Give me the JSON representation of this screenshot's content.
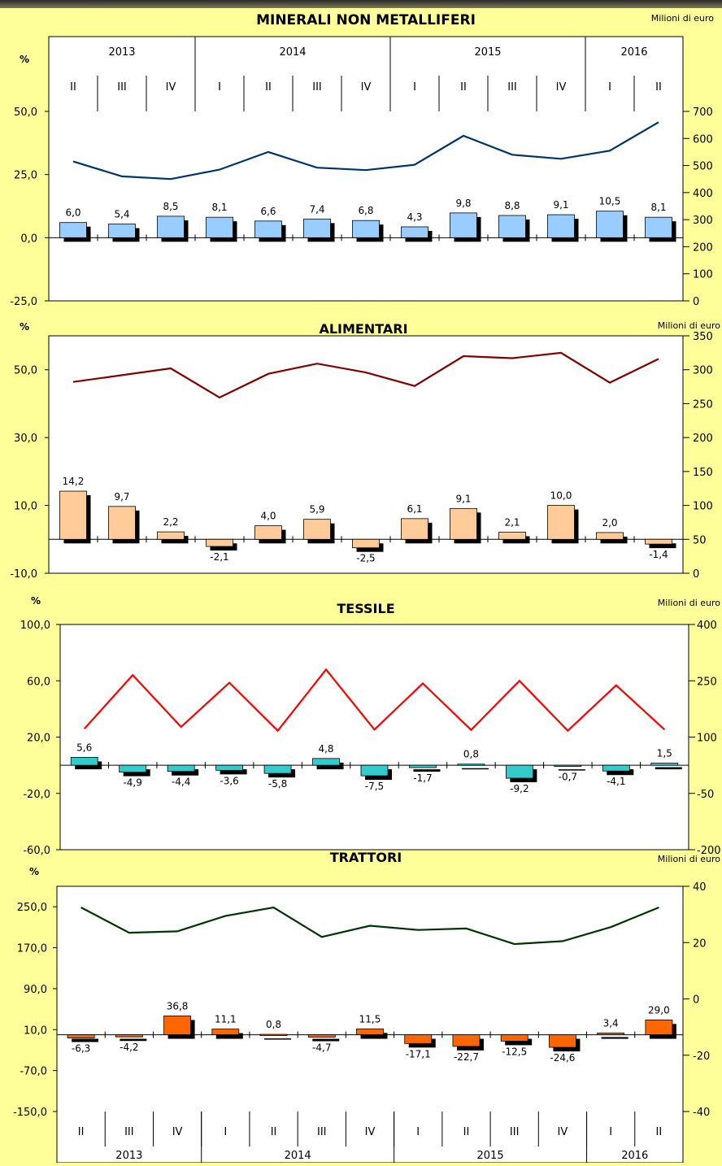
{
  "quarters": [
    "II",
    "III",
    "IV",
    "I",
    "II",
    "III",
    "IV",
    "I",
    "II",
    "III",
    "IV",
    "I",
    "II"
  ],
  "years": [
    {
      "label": "2013",
      "start": 0,
      "end": 3
    },
    {
      "label": "2014",
      "start": 3,
      "end": 7
    },
    {
      "label": "2015",
      "start": 7,
      "end": 11
    },
    {
      "label": "2016",
      "start": 11,
      "end": 13
    }
  ],
  "chart_data": [
    {
      "type": "bar+line",
      "title": "MINERALI NON METALLIFERI",
      "y_left_label": "%",
      "y_right_label": "Milioni di euro",
      "y_left_range": [
        -25,
        50
      ],
      "y_left_ticks": [
        "-25,0",
        "0,0",
        "25,0",
        "50,0"
      ],
      "y_right_range": [
        0,
        700
      ],
      "y_right_ticks": [
        "0",
        "100",
        "200",
        "300",
        "400",
        "500",
        "600",
        "700"
      ],
      "bars": {
        "values": [
          6.0,
          5.4,
          8.5,
          8.1,
          6.6,
          7.4,
          6.8,
          4.3,
          9.8,
          8.8,
          9.1,
          10.5,
          8.1
        ],
        "labels": [
          "6,0",
          "5,4",
          "8,5",
          "8,1",
          "6,6",
          "7,4",
          "6,8",
          "4,3",
          "9,8",
          "8,8",
          "9,1",
          "10,5",
          "8,1"
        ],
        "color": "#99ccff"
      },
      "line": {
        "values": [
          515,
          460,
          450,
          485,
          550,
          492,
          483,
          503,
          610,
          540,
          525,
          555,
          660
        ],
        "color": "#003366"
      }
    },
    {
      "type": "bar+line",
      "title": "ALIMENTARI",
      "y_left_label": "%",
      "y_right_label": "Milioni di euro",
      "y_left_range": [
        -10,
        60
      ],
      "y_left_ticks": [
        "-10,0",
        "10,0",
        "30,0",
        "50,0"
      ],
      "y_right_range": [
        0,
        350
      ],
      "y_right_ticks": [
        "0",
        "50",
        "100",
        "150",
        "200",
        "250",
        "300",
        "350"
      ],
      "bars": {
        "values": [
          14.2,
          9.7,
          2.2,
          -2.1,
          4.0,
          5.9,
          -2.5,
          6.1,
          9.1,
          2.1,
          10.0,
          2.0,
          -1.4
        ],
        "labels": [
          "14,2",
          "9,7",
          "2,2",
          "-2,1",
          "4,0",
          "5,9",
          "-2,5",
          "6,1",
          "9,1",
          "2,1",
          "10,0",
          "2,0",
          "-1,4"
        ],
        "color": "#ffcc99"
      },
      "line": {
        "values": [
          282,
          292,
          302,
          259,
          294,
          309,
          296,
          276,
          320,
          317,
          325,
          281,
          316
        ],
        "color": "#800000"
      }
    },
    {
      "type": "bar+line",
      "title": "TESSILE",
      "y_left_label": "%",
      "y_right_label": "Milioni di euro",
      "y_left_range": [
        -60,
        100
      ],
      "y_left_ticks": [
        "-60,0",
        "-20,0",
        "20,0",
        "60,0",
        "100,0"
      ],
      "y_right_range": [
        -200,
        400
      ],
      "y_right_ticks": [
        "-200",
        "-50",
        "100",
        "250",
        "400"
      ],
      "bars": {
        "values": [
          5.6,
          -4.9,
          -4.4,
          -3.6,
          -5.8,
          4.8,
          -7.5,
          -1.7,
          0.8,
          -9.2,
          -0.7,
          -4.1,
          1.5
        ],
        "labels": [
          "5,6",
          "-4,9",
          "-4,4",
          "-3,6",
          "-5,8",
          "4,8",
          "-7,5",
          "-1,7",
          "0,8",
          "-9,2",
          "-0,7",
          "-4,1",
          "1,5"
        ],
        "color": "#33cccc"
      },
      "line": {
        "values": [
          122,
          265,
          127,
          245,
          117,
          280,
          120,
          243,
          119,
          250,
          117,
          238,
          120
        ],
        "color": "#ff0000"
      }
    },
    {
      "type": "bar+line",
      "title": "TRATTORI",
      "y_left_label": "%",
      "y_right_label": "Milioni di euro",
      "y_left_range": [
        -150,
        290
      ],
      "y_left_ticks": [
        "-150,0",
        "-70,0",
        "10,0",
        "90,0",
        "170,0",
        "250,0"
      ],
      "y_right_range": [
        -40,
        40
      ],
      "y_right_ticks": [
        "-40",
        "-20",
        "0",
        "20",
        "40"
      ],
      "bars": {
        "values": [
          -6.3,
          -4.2,
          36.8,
          11.1,
          0.8,
          -4.7,
          11.5,
          -17.1,
          -22.7,
          -12.5,
          -24.6,
          3.4,
          29.0
        ],
        "labels": [
          "-6,3",
          "-4,2",
          "36,8",
          "11,1",
          "0,8",
          "-4,7",
          "11,5",
          "-17,1",
          "-22,7",
          "-12,5",
          "-24,6",
          "3,4",
          "29,0"
        ],
        "color": "#ff6600"
      },
      "line": {
        "values": [
          32.5,
          23.5,
          24.0,
          29.5,
          32.5,
          22.0,
          26.0,
          24.5,
          25.0,
          19.5,
          20.5,
          25.5,
          32.5
        ],
        "color": "#003300"
      }
    }
  ]
}
